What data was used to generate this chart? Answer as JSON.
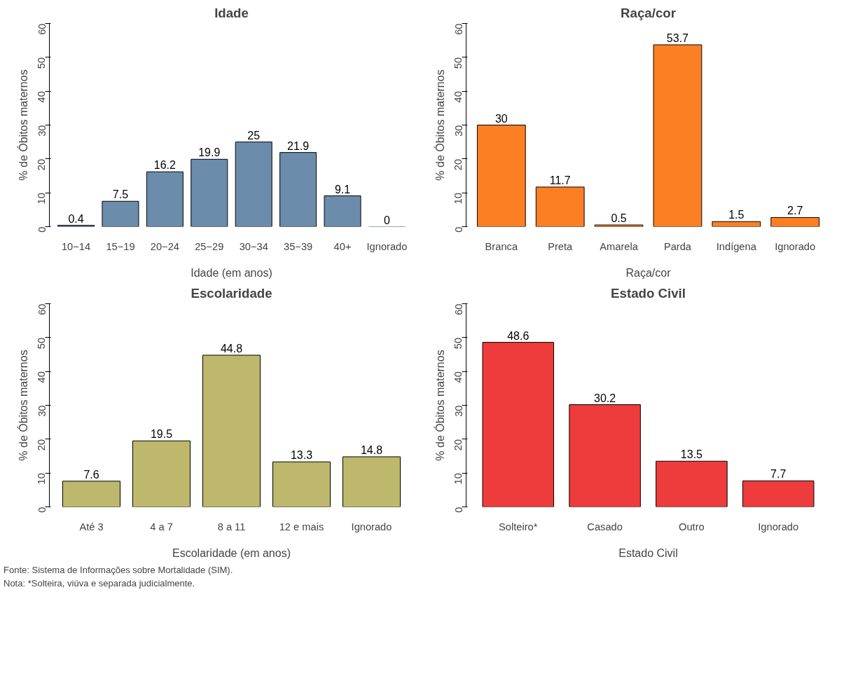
{
  "chart_data": [
    {
      "type": "bar",
      "title": "Idade",
      "xlabel": "Idade (em anos)",
      "ylabel": "% de Óbitos maternos",
      "categories": [
        "10−14",
        "15−19",
        "20−24",
        "25−29",
        "30−34",
        "35−39",
        "40+",
        "Ignorado"
      ],
      "values": [
        0.4,
        7.5,
        16.2,
        19.9,
        25,
        21.9,
        9.1,
        0
      ],
      "color": "#6b8cab",
      "ylim": [
        0,
        60
      ],
      "yticks": [
        0,
        10,
        20,
        30,
        40,
        50,
        60
      ],
      "data_labels": true,
      "grid": false
    },
    {
      "type": "bar",
      "title": "Raça/cor",
      "xlabel": "Raça/cor",
      "ylabel": "% de Óbitos maternos",
      "categories": [
        "Branca",
        "Preta",
        "Amarela",
        "Parda",
        "Indígena",
        "Ignorado"
      ],
      "values": [
        30,
        11.7,
        0.5,
        53.7,
        1.5,
        2.7
      ],
      "color": "#fd7f23",
      "ylim": [
        0,
        60
      ],
      "yticks": [
        0,
        10,
        20,
        30,
        40,
        50,
        60
      ],
      "data_labels": true,
      "grid": false
    },
    {
      "type": "bar",
      "title": "Escolaridade",
      "xlabel": "Escolaridade (em anos)",
      "ylabel": "% de Óbitos maternos",
      "categories": [
        "Até 3",
        "4 a 7",
        "8 a 11",
        "12 e mais",
        "Ignorado"
      ],
      "values": [
        7.6,
        19.5,
        44.8,
        13.3,
        14.8
      ],
      "color": "#bdb86b",
      "ylim": [
        0,
        60
      ],
      "yticks": [
        0,
        10,
        20,
        30,
        40,
        50,
        60
      ],
      "data_labels": true,
      "grid": false
    },
    {
      "type": "bar",
      "title": "Estado Civil",
      "xlabel": "Estado Civil",
      "ylabel": "% de Óbitos maternos",
      "categories": [
        "Solteiro*",
        "Casado",
        "Outro",
        "Ignorado"
      ],
      "values": [
        48.6,
        30.2,
        13.5,
        7.7
      ],
      "color": "#ee3b3b",
      "ylim": [
        0,
        60
      ],
      "yticks": [
        0,
        10,
        20,
        30,
        40,
        50,
        60
      ],
      "data_labels": true,
      "grid": false,
      "annotations": [
        "Fonte: Sistema de Informações sobre Mortalidade (SIM).",
        "Nota: *Solteira, viúva e separada judicialmente."
      ]
    }
  ]
}
